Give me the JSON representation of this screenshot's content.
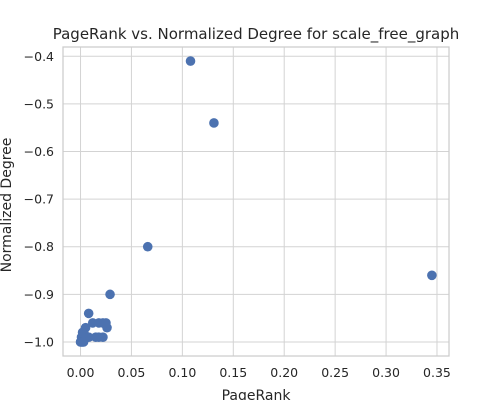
{
  "chart_data": {
    "type": "scatter",
    "title": "PageRank vs. Normalized Degree for scale_free_graph",
    "xlabel": "PageRank",
    "ylabel": "Normalized Degree",
    "xlim": [
      -0.0172,
      0.3618
    ],
    "ylim": [
      -1.0295,
      -0.3805
    ],
    "xticks": [
      0.0,
      0.05,
      0.1,
      0.15,
      0.2,
      0.25,
      0.3,
      0.35
    ],
    "xtick_labels": [
      "0.00",
      "0.05",
      "0.10",
      "0.15",
      "0.20",
      "0.25",
      "0.30",
      "0.35"
    ],
    "yticks": [
      -1.0,
      -0.9,
      -0.8,
      -0.7,
      -0.6,
      -0.5,
      -0.4
    ],
    "ytick_labels": [
      "−1.0",
      "−0.9",
      "−0.8",
      "−0.7",
      "−0.6",
      "−0.5",
      "−0.4"
    ],
    "grid": true,
    "marker_color": "#4c72b0",
    "grid_color": "#d3d3d3",
    "points": [
      {
        "x": 0.108,
        "y": -0.41
      },
      {
        "x": 0.131,
        "y": -0.54
      },
      {
        "x": 0.066,
        "y": -0.8
      },
      {
        "x": 0.345,
        "y": -0.86
      },
      {
        "x": 0.029,
        "y": -0.9
      },
      {
        "x": 0.008,
        "y": -0.94
      },
      {
        "x": 0.005,
        "y": -0.97
      },
      {
        "x": 0.012,
        "y": -0.96
      },
      {
        "x": 0.018,
        "y": -0.96
      },
      {
        "x": 0.022,
        "y": -0.96
      },
      {
        "x": 0.025,
        "y": -0.96
      },
      {
        "x": 0.026,
        "y": -0.97
      },
      {
        "x": 0.002,
        "y": -0.98
      },
      {
        "x": 0.004,
        "y": -0.985
      },
      {
        "x": 0.008,
        "y": -0.99
      },
      {
        "x": 0.015,
        "y": -0.99
      },
      {
        "x": 0.018,
        "y": -0.99
      },
      {
        "x": 0.022,
        "y": -0.99
      },
      {
        "x": 0.001,
        "y": -0.99
      },
      {
        "x": 0.003,
        "y": -0.995
      },
      {
        "x": 0.0,
        "y": -1.0
      },
      {
        "x": 0.001,
        "y": -1.0
      },
      {
        "x": 0.002,
        "y": -1.0
      },
      {
        "x": 0.003,
        "y": -1.0
      }
    ]
  }
}
